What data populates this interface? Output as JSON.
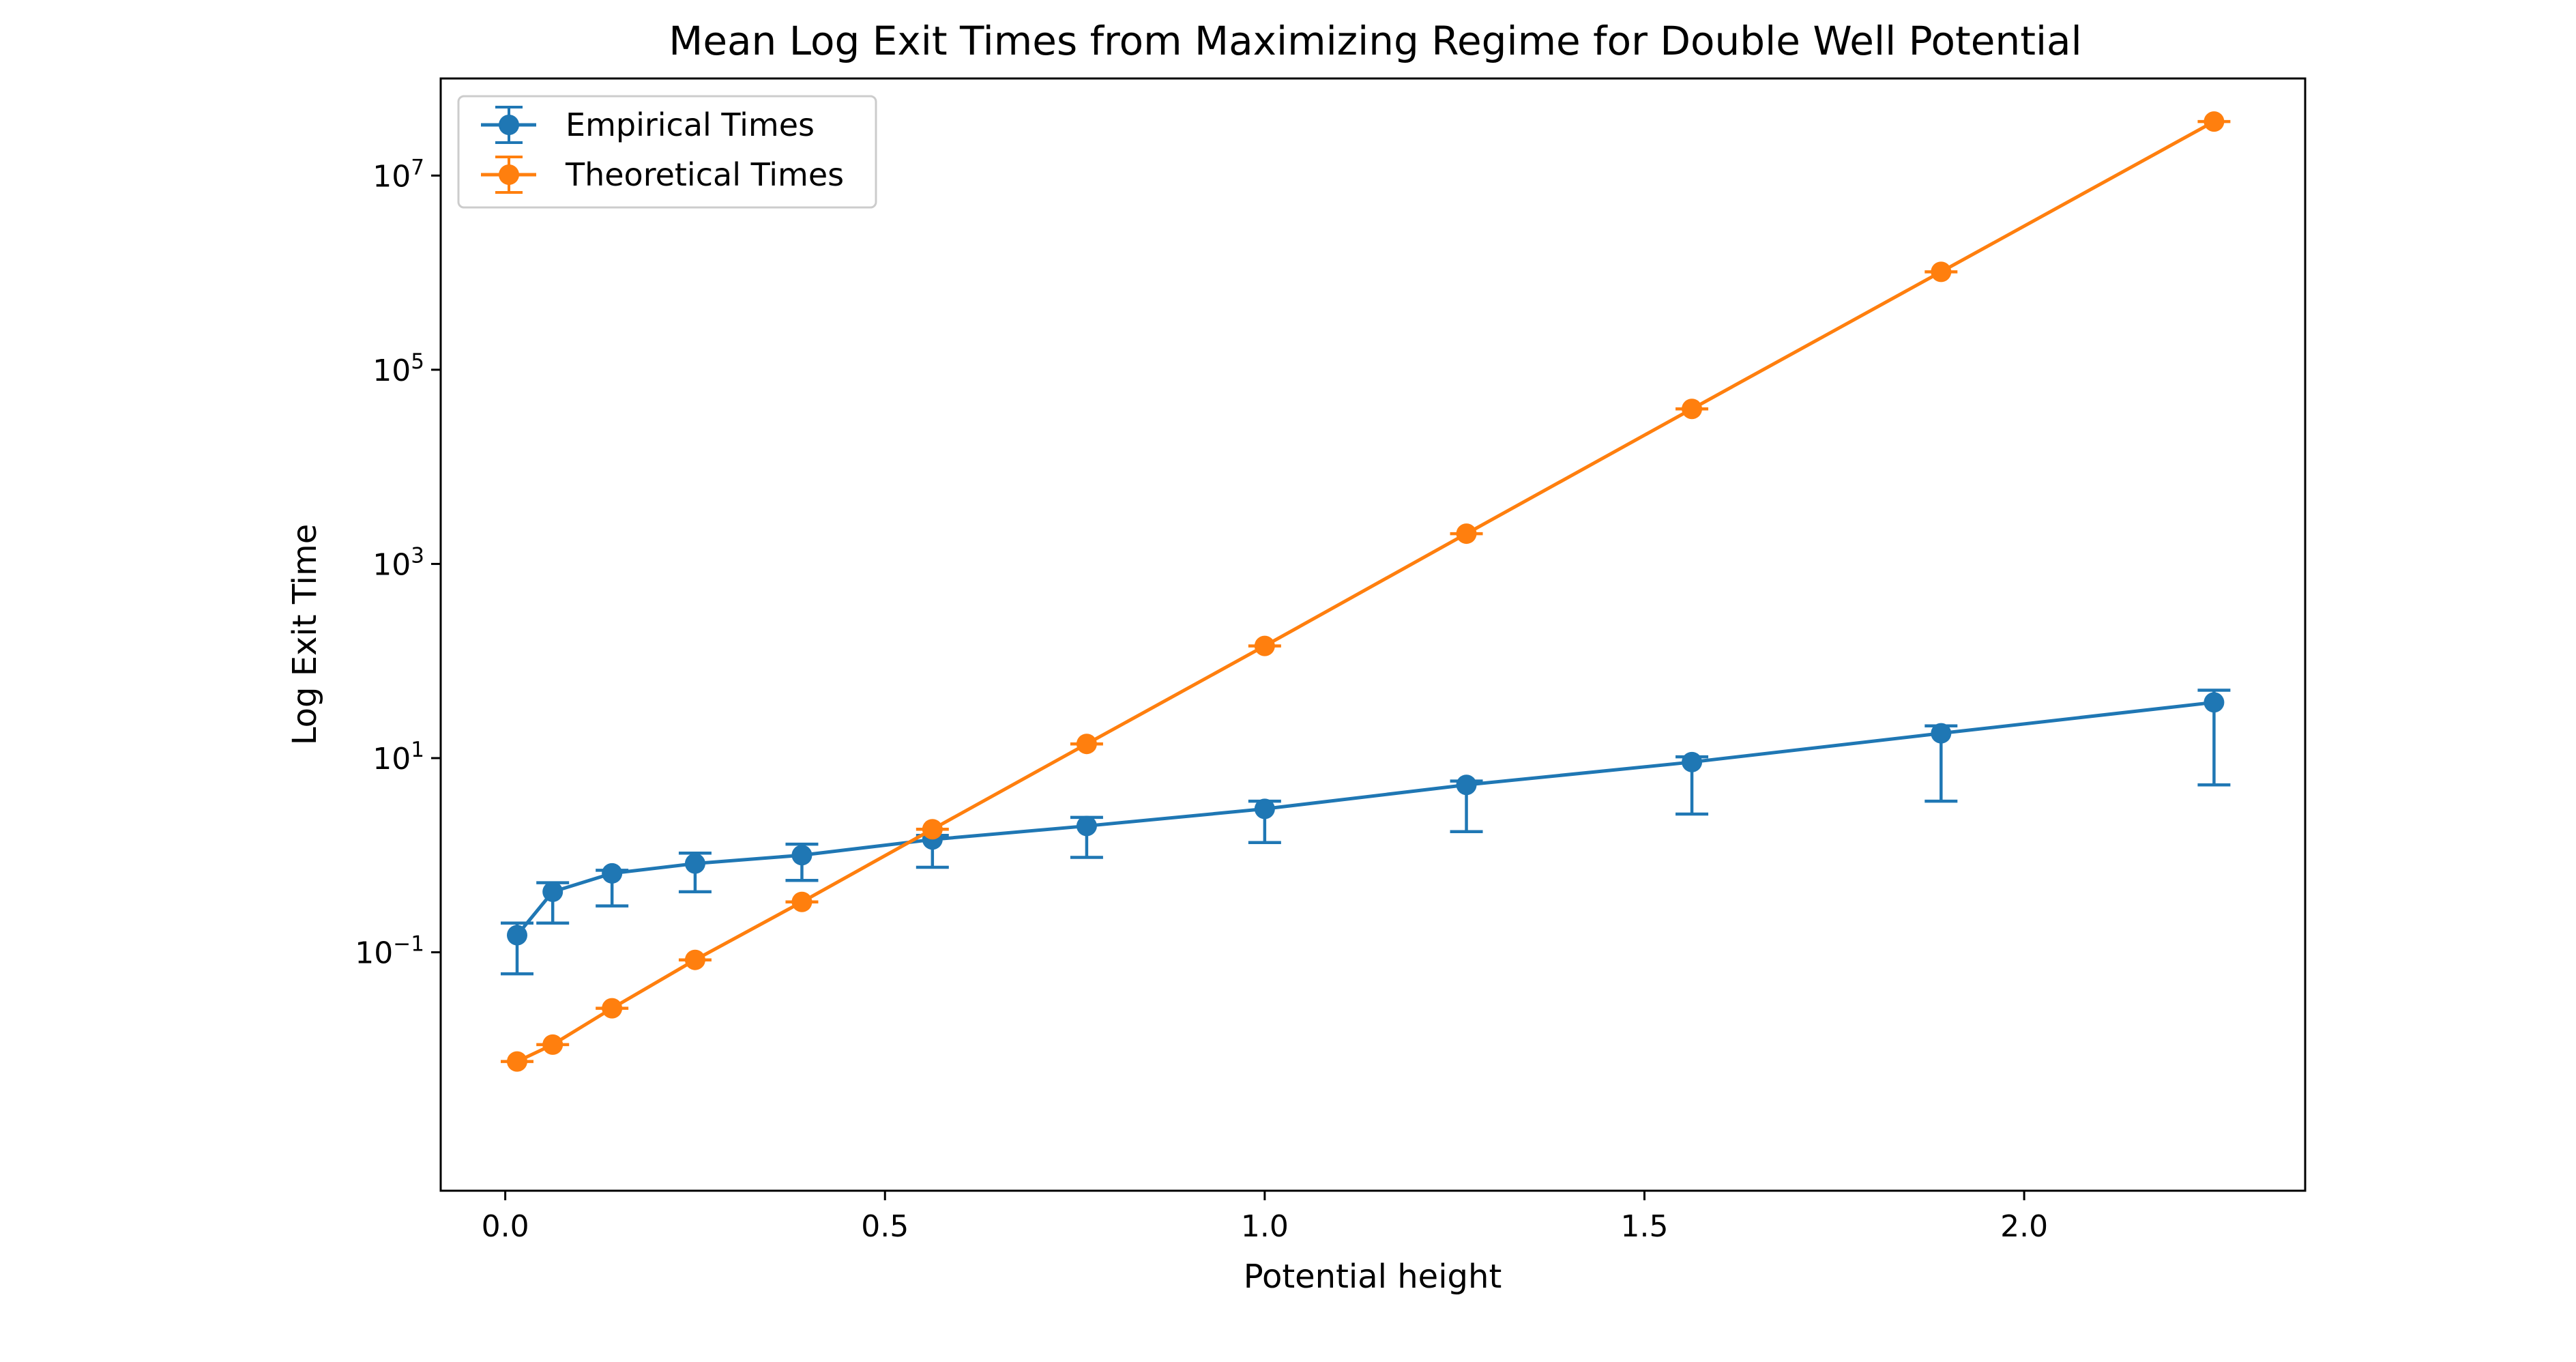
{
  "chart_data": {
    "type": "line",
    "title": "Mean Log Exit Times from Maximizing Regime for Double Well Potential",
    "xlabel": "Potential height",
    "ylabel": "Log Exit Time",
    "yscale": "log",
    "xlim": [
      -0.085,
      2.37
    ],
    "ylim": [
      0.00035,
      100000000
    ],
    "xticks": [
      0.0,
      0.5,
      1.0,
      1.5,
      2.0
    ],
    "xtick_labels": [
      "0.0",
      "0.5",
      "1.0",
      "1.5",
      "2.0"
    ],
    "yticks": [
      0.1,
      10,
      1000,
      100000,
      10000000
    ],
    "ytick_labels": [
      {
        "base": "10",
        "exp": "−1"
      },
      {
        "base": "10",
        "exp": "1"
      },
      {
        "base": "10",
        "exp": "3"
      },
      {
        "base": "10",
        "exp": "5"
      },
      {
        "base": "10",
        "exp": "7"
      }
    ],
    "grid": false,
    "legend_position": "top-left",
    "series": [
      {
        "name": "Empirical Times",
        "color": "#1f77b4",
        "x": [
          0.0156,
          0.0625,
          0.1406,
          0.25,
          0.3906,
          0.5625,
          0.7656,
          1.0,
          1.2656,
          1.5625,
          1.8906,
          2.25
        ],
        "y": [
          0.15,
          0.42,
          0.65,
          0.82,
          1.0,
          1.45,
          2.0,
          3.0,
          5.3,
          9.1,
          18.0,
          37.5
        ],
        "err_low": [
          0.06,
          0.2,
          0.3,
          0.42,
          0.55,
          0.75,
          0.95,
          1.35,
          1.75,
          2.65,
          3.6,
          5.3
        ],
        "err_high": [
          0.2,
          0.52,
          0.7,
          1.05,
          1.3,
          1.6,
          2.45,
          3.6,
          5.8,
          10.3,
          21.5,
          50.0
        ]
      },
      {
        "name": "Theoretical Times",
        "color": "#ff7f0e",
        "x": [
          0.0156,
          0.0625,
          0.1406,
          0.25,
          0.3906,
          0.5625,
          0.7656,
          1.0,
          1.2656,
          1.5625,
          1.8906,
          2.25
        ],
        "y": [
          0.0075,
          0.0112,
          0.0265,
          0.0835,
          0.33,
          1.85,
          14.0,
          143.0,
          2050.0,
          39500.0,
          1020000.0,
          36000000.0
        ]
      }
    ]
  }
}
